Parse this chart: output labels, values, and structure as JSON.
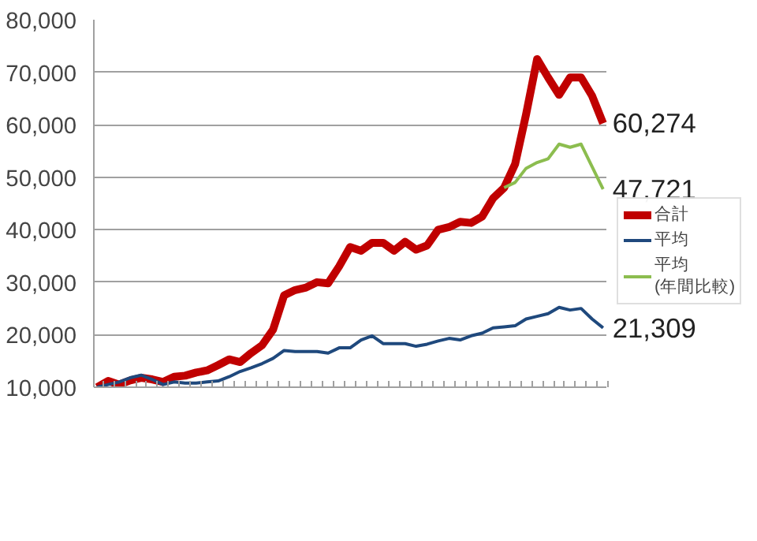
{
  "chart_data": {
    "type": "line",
    "categories": [
      null,
      null,
      null,
      null,
      null,
      null,
      null,
      null,
      null,
      null,
      null,
      null,
      null,
      null,
      null,
      null,
      null,
      null,
      null,
      null,
      null,
      null,
      null,
      null,
      null,
      null,
      null,
      null,
      null,
      null,
      null,
      null,
      null,
      null,
      null,
      null,
      null,
      null,
      null,
      null,
      null,
      null,
      null,
      null,
      null,
      null,
      null
    ],
    "series": [
      {
        "name": "合計",
        "color": "#c00000",
        "values": [
          10000,
          11200,
          10500,
          11300,
          11800,
          11500,
          11000,
          12000,
          12200,
          12800,
          13200,
          14200,
          15300,
          14800,
          16500,
          18000,
          21000,
          27500,
          28500,
          29000,
          30000,
          29800,
          33000,
          36700,
          36000,
          37500,
          37500,
          36000,
          37700,
          36200,
          37000,
          40000,
          40500,
          41500,
          41300,
          42500,
          46000,
          48000,
          52500,
          62000,
          72500,
          69000,
          65700,
          69000,
          69000,
          65500,
          60274
        ],
        "value_labels": [
          null,
          null,
          null,
          null,
          null,
          null,
          null,
          null,
          null,
          null,
          null,
          null,
          null,
          null,
          null,
          null,
          null,
          null,
          null,
          null,
          null,
          null,
          null,
          null,
          null,
          null,
          null,
          null,
          null,
          null,
          null,
          null,
          null,
          null,
          null,
          null,
          null,
          null,
          null,
          null,
          null,
          null,
          null,
          null,
          null,
          null,
          "60,274"
        ]
      },
      {
        "name": "平均",
        "color": "#1f497d",
        "values": [
          10000,
          10500,
          11000,
          11800,
          12300,
          11500,
          10500,
          11000,
          10800,
          10800,
          11000,
          11200,
          12000,
          13000,
          13700,
          14500,
          15500,
          17000,
          16800,
          16800,
          16800,
          16500,
          17500,
          17500,
          19000,
          19800,
          18300,
          18300,
          18300,
          17800,
          18200,
          18800,
          19300,
          19000,
          19800,
          20300,
          21300,
          21500,
          21700,
          23000,
          23500,
          24000,
          25200,
          24700,
          25000,
          23000,
          21309
        ],
        "value_labels": [
          null,
          null,
          null,
          null,
          null,
          null,
          null,
          null,
          null,
          null,
          null,
          null,
          null,
          null,
          null,
          null,
          null,
          null,
          null,
          null,
          null,
          null,
          null,
          null,
          null,
          null,
          null,
          null,
          null,
          null,
          null,
          null,
          null,
          null,
          null,
          null,
          null,
          null,
          null,
          null,
          null,
          null,
          null,
          null,
          null,
          null,
          "21,309"
        ]
      },
      {
        "name": "平均\n(年間比較)",
        "color": "#8cbd4f",
        "values": [
          null,
          null,
          null,
          null,
          null,
          null,
          null,
          null,
          null,
          null,
          null,
          null,
          null,
          null,
          null,
          null,
          null,
          null,
          null,
          null,
          null,
          null,
          null,
          null,
          null,
          null,
          null,
          null,
          null,
          null,
          null,
          null,
          null,
          null,
          null,
          null,
          null,
          48000,
          49000,
          51700,
          52800,
          53500,
          56300,
          55700,
          56300,
          52000,
          47721
        ],
        "value_labels": [
          null,
          null,
          null,
          null,
          null,
          null,
          null,
          null,
          null,
          null,
          null,
          null,
          null,
          null,
          null,
          null,
          null,
          null,
          null,
          null,
          null,
          null,
          null,
          null,
          null,
          null,
          null,
          null,
          null,
          null,
          null,
          null,
          null,
          null,
          null,
          null,
          null,
          null,
          null,
          null,
          null,
          null,
          null,
          null,
          null,
          null,
          "47,721"
        ]
      }
    ],
    "ylim": [
      10000,
      80000
    ],
    "yticks": [
      {
        "value": 10000,
        "label": "10,000"
      },
      {
        "value": 20000,
        "label": "20,000"
      },
      {
        "value": 30000,
        "label": "30,000"
      },
      {
        "value": 40000,
        "label": "40,000"
      },
      {
        "value": 50000,
        "label": "50,000"
      },
      {
        "value": 60000,
        "label": "60,000"
      },
      {
        "value": 70000,
        "label": "70,000"
      },
      {
        "value": 80000,
        "label": "80,000"
      }
    ],
    "grid": "y",
    "legend": "right",
    "tick_labels": "y",
    "marker": "none",
    "line_style": "solid"
  }
}
